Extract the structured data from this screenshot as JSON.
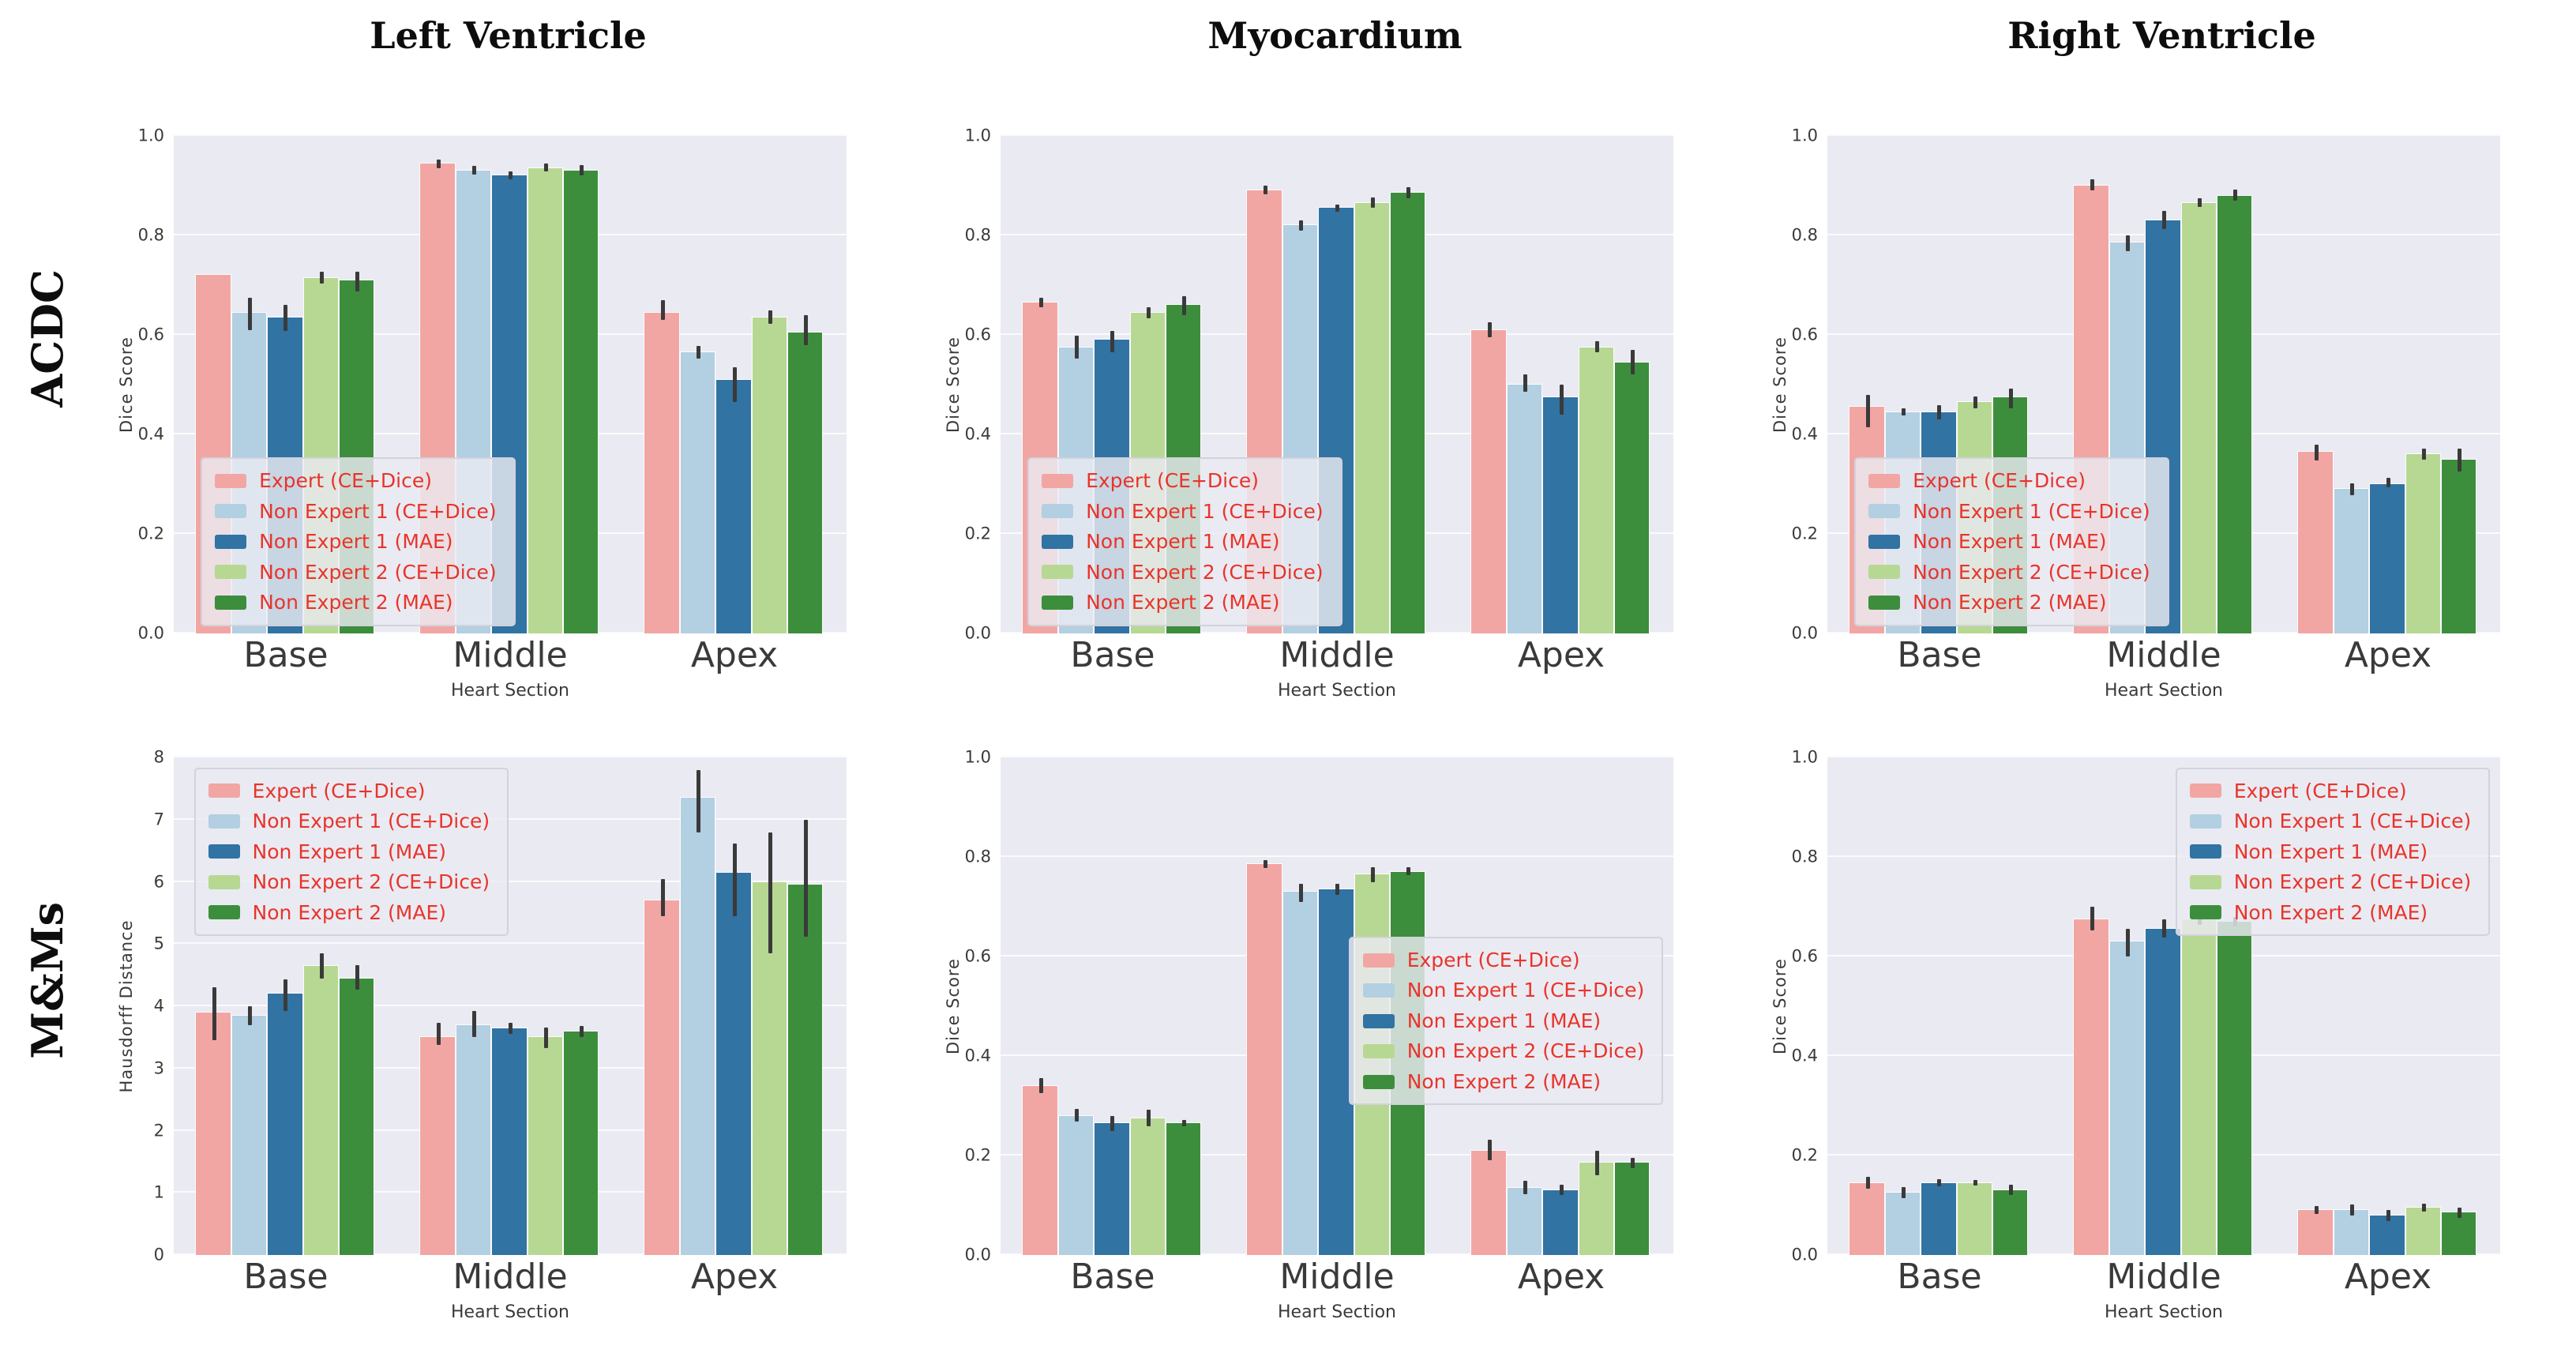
{
  "figure": {
    "column_titles": [
      "Left Ventricle",
      "Myocardium",
      "Right Ventricle"
    ],
    "row_titles": [
      "ACDC",
      "M&Ms"
    ],
    "palette": {
      "expert": "#f2a6a3",
      "ne1_ce": "#b3cfe2",
      "ne1_mae": "#3173a3",
      "ne2_ce": "#b7d893",
      "ne2_mae": "#3d8e3c",
      "plot_background": "#eaeaf2",
      "gridline": "#fbfbfd",
      "errorbar": "#3a3a3a",
      "legend_text": "#e8342b",
      "axis_text": "#3a3a3a"
    },
    "legend_labels": [
      "Expert (CE+Dice)",
      "Non Expert 1 (CE+Dice)",
      "Non Expert 1 (MAE)",
      "Non Expert 2 (CE+Dice)",
      "Non Expert 2 (MAE)"
    ]
  },
  "chart_data": [
    {
      "type": "bar",
      "row": "ACDC",
      "column": "Left Ventricle",
      "ylabel": "Dice Score",
      "xlabel": "Heart Section",
      "ylim": [
        0,
        1.0
      ],
      "yticks": [
        0.0,
        0.2,
        0.4,
        0.6,
        0.8,
        1.0
      ],
      "ytick_labels": [
        "0.0",
        "0.2",
        "0.4",
        "0.6",
        "0.8",
        "1.0"
      ],
      "categories": [
        "Base",
        "Middle",
        "Apex"
      ],
      "grid": true,
      "legend_position": "lower-left",
      "series": [
        {
          "name": "Expert (CE+Dice)",
          "color_key": "expert",
          "values": [
            0.72,
            0.945,
            0.645
          ],
          "err": [
            null,
            [
              0.935,
              0.952
            ],
            [
              0.63,
              0.67
            ]
          ]
        },
        {
          "name": "Non Expert 1 (CE+Dice)",
          "color_key": "ne1_ce",
          "values": [
            0.645,
            0.93,
            0.565
          ],
          "err": [
            [
              0.61,
              0.675
            ],
            [
              0.922,
              0.94
            ],
            [
              0.553,
              0.578
            ]
          ]
        },
        {
          "name": "Non Expert 1 (MAE)",
          "color_key": "ne1_mae",
          "values": [
            0.635,
            0.92,
            0.51
          ],
          "err": [
            [
              0.608,
              0.66
            ],
            [
              0.913,
              0.928
            ],
            [
              0.465,
              0.535
            ]
          ]
        },
        {
          "name": "Non Expert 2 (CE+Dice)",
          "color_key": "ne2_ce",
          "values": [
            0.715,
            0.935,
            0.635
          ],
          "err": [
            [
              0.703,
              0.727
            ],
            [
              0.928,
              0.945
            ],
            [
              0.623,
              0.65
            ]
          ]
        },
        {
          "name": "Non Expert 2 (MAE)",
          "color_key": "ne2_mae",
          "values": [
            0.71,
            0.93,
            0.605
          ],
          "err": [
            [
              0.688,
              0.727
            ],
            [
              0.92,
              0.942
            ],
            [
              0.58,
              0.64
            ]
          ]
        }
      ]
    },
    {
      "type": "bar",
      "row": "ACDC",
      "column": "Myocardium",
      "ylabel": "Dice Score",
      "xlabel": "Heart Section",
      "ylim": [
        0,
        1.0
      ],
      "yticks": [
        0.0,
        0.2,
        0.4,
        0.6,
        0.8,
        1.0
      ],
      "ytick_labels": [
        "0.0",
        "0.2",
        "0.4",
        "0.6",
        "0.8",
        "1.0"
      ],
      "categories": [
        "Base",
        "Middle",
        "Apex"
      ],
      "grid": true,
      "legend_position": "lower-left",
      "series": [
        {
          "name": "Expert (CE+Dice)",
          "color_key": "expert",
          "values": [
            0.665,
            0.89,
            0.61
          ],
          "err": [
            [
              0.655,
              0.675
            ],
            [
              0.882,
              0.9
            ],
            [
              0.595,
              0.625
            ]
          ]
        },
        {
          "name": "Non Expert 1 (CE+Dice)",
          "color_key": "ne1_ce",
          "values": [
            0.575,
            0.82,
            0.5
          ],
          "err": [
            [
              0.553,
              0.598
            ],
            [
              0.81,
              0.83
            ],
            [
              0.485,
              0.52
            ]
          ]
        },
        {
          "name": "Non Expert 1 (MAE)",
          "color_key": "ne1_mae",
          "values": [
            0.59,
            0.855,
            0.475
          ],
          "err": [
            [
              0.565,
              0.608
            ],
            [
              0.848,
              0.862
            ],
            [
              0.44,
              0.5
            ]
          ]
        },
        {
          "name": "Non Expert 2 (CE+Dice)",
          "color_key": "ne2_ce",
          "values": [
            0.645,
            0.865,
            0.575
          ],
          "err": [
            [
              0.633,
              0.656
            ],
            [
              0.856,
              0.876
            ],
            [
              0.565,
              0.588
            ]
          ]
        },
        {
          "name": "Non Expert 2 (MAE)",
          "color_key": "ne2_mae",
          "values": [
            0.66,
            0.885,
            0.545
          ],
          "err": [
            [
              0.64,
              0.678
            ],
            [
              0.875,
              0.897
            ],
            [
              0.52,
              0.57
            ]
          ]
        }
      ]
    },
    {
      "type": "bar",
      "row": "ACDC",
      "column": "Right Ventricle",
      "ylabel": "Dice Score",
      "xlabel": "Heart Section",
      "ylim": [
        0,
        1.0
      ],
      "yticks": [
        0.0,
        0.2,
        0.4,
        0.6,
        0.8,
        1.0
      ],
      "ytick_labels": [
        "0.0",
        "0.2",
        "0.4",
        "0.6",
        "0.8",
        "1.0"
      ],
      "categories": [
        "Base",
        "Middle",
        "Apex"
      ],
      "grid": true,
      "legend_position": "lower-left",
      "series": [
        {
          "name": "Expert (CE+Dice)",
          "color_key": "expert",
          "values": [
            0.455,
            0.9,
            0.365
          ],
          "err": [
            [
              0.415,
              0.48
            ],
            [
              0.89,
              0.912
            ],
            [
              0.348,
              0.38
            ]
          ]
        },
        {
          "name": "Non Expert 1 (CE+Dice)",
          "color_key": "ne1_ce",
          "values": [
            0.445,
            0.785,
            0.29
          ],
          "err": [
            [
              0.438,
              0.452
            ],
            [
              0.768,
              0.8
            ],
            [
              0.278,
              0.302
            ]
          ]
        },
        {
          "name": "Non Expert 1 (MAE)",
          "color_key": "ne1_mae",
          "values": [
            0.445,
            0.83,
            0.3
          ],
          "err": [
            [
              0.43,
              0.458
            ],
            [
              0.813,
              0.85
            ],
            [
              0.293,
              0.312
            ]
          ]
        },
        {
          "name": "Non Expert 2 (CE+Dice)",
          "color_key": "ne2_ce",
          "values": [
            0.465,
            0.865,
            0.36
          ],
          "err": [
            [
              0.453,
              0.477
            ],
            [
              0.857,
              0.875
            ],
            [
              0.35,
              0.372
            ]
          ]
        },
        {
          "name": "Non Expert 2 (MAE)",
          "color_key": "ne2_mae",
          "values": [
            0.475,
            0.88,
            0.35
          ],
          "err": [
            [
              0.453,
              0.492
            ],
            [
              0.87,
              0.892
            ],
            [
              0.325,
              0.372
            ]
          ]
        }
      ]
    },
    {
      "type": "bar",
      "row": "M&Ms",
      "column": "Left Ventricle",
      "ylabel": "Hausdorff Distance",
      "xlabel": "Heart Section",
      "ylim": [
        0,
        8
      ],
      "yticks": [
        0,
        1,
        2,
        3,
        4,
        5,
        6,
        7,
        8
      ],
      "ytick_labels": [
        "0",
        "1",
        "2",
        "3",
        "4",
        "5",
        "6",
        "7",
        "8"
      ],
      "categories": [
        "Base",
        "Middle",
        "Apex"
      ],
      "grid": true,
      "legend_position": "upper-left",
      "series": [
        {
          "name": "Expert (CE+Dice)",
          "color_key": "expert",
          "values": [
            3.9,
            3.5,
            5.7
          ],
          "err": [
            [
              3.45,
              4.3
            ],
            [
              3.38,
              3.73
            ],
            [
              5.45,
              6.05
            ]
          ]
        },
        {
          "name": "Non Expert 1 (CE+Dice)",
          "color_key": "ne1_ce",
          "values": [
            3.85,
            3.7,
            7.35
          ],
          "err": [
            [
              3.7,
              4.0
            ],
            [
              3.5,
              3.93
            ],
            [
              6.8,
              7.8
            ]
          ]
        },
        {
          "name": "Non Expert 1 (MAE)",
          "color_key": "ne1_mae",
          "values": [
            4.2,
            3.65,
            6.15
          ],
          "err": [
            [
              3.93,
              4.43
            ],
            [
              3.55,
              3.73
            ],
            [
              5.45,
              6.62
            ]
          ]
        },
        {
          "name": "Non Expert 2 (CE+Dice)",
          "color_key": "ne2_ce",
          "values": [
            4.65,
            3.5,
            6.0
          ],
          "err": [
            [
              4.45,
              4.85
            ],
            [
              3.33,
              3.66
            ],
            [
              4.85,
              6.8
            ]
          ]
        },
        {
          "name": "Non Expert 2 (MAE)",
          "color_key": "ne2_mae",
          "values": [
            4.45,
            3.6,
            5.95
          ],
          "err": [
            [
              4.27,
              4.66
            ],
            [
              3.5,
              3.68
            ],
            [
              5.12,
              7.0
            ]
          ]
        }
      ]
    },
    {
      "type": "bar",
      "row": "M&Ms",
      "column": "Myocardium",
      "ylabel": "Dice Score",
      "xlabel": "Heart Section",
      "ylim": [
        0,
        1.0
      ],
      "yticks": [
        0.0,
        0.2,
        0.4,
        0.6,
        0.8,
        1.0
      ],
      "ytick_labels": [
        "0.0",
        "0.2",
        "0.4",
        "0.6",
        "0.8",
        "1.0"
      ],
      "categories": [
        "Base",
        "Middle",
        "Apex"
      ],
      "grid": true,
      "legend_position": "center-right",
      "series": [
        {
          "name": "Expert (CE+Dice)",
          "color_key": "expert",
          "values": [
            0.34,
            0.785,
            0.21
          ],
          "err": [
            [
              0.325,
              0.356
            ],
            [
              0.778,
              0.794
            ],
            [
              0.19,
              0.231
            ]
          ]
        },
        {
          "name": "Non Expert 1 (CE+Dice)",
          "color_key": "ne1_ce",
          "values": [
            0.28,
            0.73,
            0.135
          ],
          "err": [
            [
              0.268,
              0.294
            ],
            [
              0.71,
              0.746
            ],
            [
              0.123,
              0.15
            ]
          ]
        },
        {
          "name": "Non Expert 1 (MAE)",
          "color_key": "ne1_mae",
          "values": [
            0.265,
            0.735,
            0.13
          ],
          "err": [
            [
              0.249,
              0.28
            ],
            [
              0.724,
              0.746
            ],
            [
              0.12,
              0.141
            ]
          ]
        },
        {
          "name": "Non Expert 2 (CE+Dice)",
          "color_key": "ne2_ce",
          "values": [
            0.275,
            0.765,
            0.185
          ],
          "err": [
            [
              0.258,
              0.292
            ],
            [
              0.75,
              0.78
            ],
            [
              0.16,
              0.21
            ]
          ]
        },
        {
          "name": "Non Expert 2 (MAE)",
          "color_key": "ne2_mae",
          "values": [
            0.265,
            0.77,
            0.185
          ],
          "err": [
            [
              0.259,
              0.272
            ],
            [
              0.763,
              0.779
            ],
            [
              0.174,
              0.196
            ]
          ]
        }
      ]
    },
    {
      "type": "bar",
      "row": "M&Ms",
      "column": "Right Ventricle",
      "ylabel": "Dice Score",
      "xlabel": "Heart Section",
      "ylim": [
        0,
        1.0
      ],
      "yticks": [
        0.0,
        0.2,
        0.4,
        0.6,
        0.8,
        1.0
      ],
      "ytick_labels": [
        "0.0",
        "0.2",
        "0.4",
        "0.6",
        "0.8",
        "1.0"
      ],
      "categories": [
        "Base",
        "Middle",
        "Apex"
      ],
      "grid": true,
      "legend_position": "upper-right",
      "series": [
        {
          "name": "Expert (CE+Dice)",
          "color_key": "expert",
          "values": [
            0.145,
            0.675,
            0.09
          ],
          "err": [
            [
              0.134,
              0.157
            ],
            [
              0.653,
              0.7
            ],
            [
              0.083,
              0.099
            ]
          ]
        },
        {
          "name": "Non Expert 1 (CE+Dice)",
          "color_key": "ne1_ce",
          "values": [
            0.125,
            0.63,
            0.09
          ],
          "err": [
            [
              0.115,
              0.136
            ],
            [
              0.6,
              0.656
            ],
            [
              0.079,
              0.101
            ]
          ]
        },
        {
          "name": "Non Expert 1 (MAE)",
          "color_key": "ne1_mae",
          "values": [
            0.145,
            0.655,
            0.08
          ],
          "err": [
            [
              0.138,
              0.153
            ],
            [
              0.638,
              0.674
            ],
            [
              0.069,
              0.091
            ]
          ]
        },
        {
          "name": "Non Expert 2 (CE+Dice)",
          "color_key": "ne2_ce",
          "values": [
            0.145,
            0.675,
            0.095
          ],
          "err": [
            [
              0.139,
              0.151
            ],
            [
              0.664,
              0.682
            ],
            [
              0.088,
              0.103
            ]
          ]
        },
        {
          "name": "Non Expert 2 (MAE)",
          "color_key": "ne2_mae",
          "values": [
            0.13,
            0.67,
            0.085
          ],
          "err": [
            [
              0.12,
              0.141
            ],
            [
              0.66,
              0.679
            ],
            [
              0.074,
              0.096
            ]
          ]
        }
      ]
    }
  ]
}
